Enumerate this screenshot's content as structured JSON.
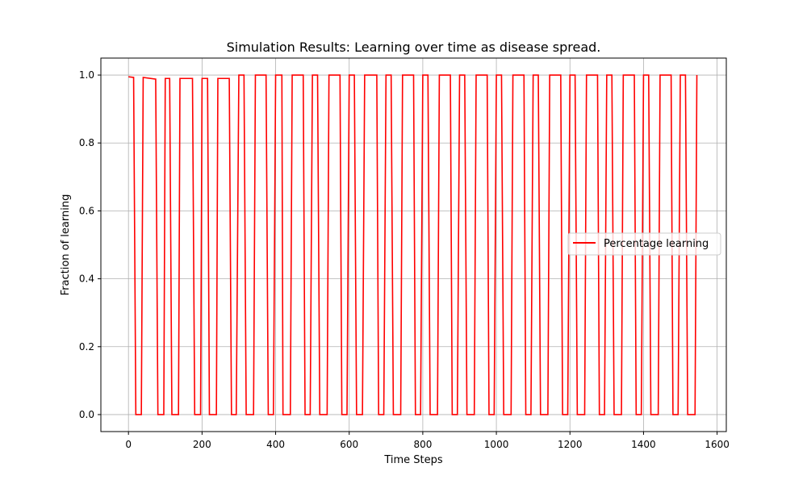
{
  "chart_data": {
    "type": "line",
    "title": "Simulation Results: Learning over time as disease spread.",
    "xlabel": "Time Steps",
    "ylabel": "Fraction of learning",
    "xlim": [
      -75,
      1625
    ],
    "ylim": [
      -0.05,
      1.05
    ],
    "xticks": [
      0,
      200,
      400,
      600,
      800,
      1000,
      1200,
      1400,
      1600
    ],
    "xtick_labels": [
      "0",
      "200",
      "400",
      "600",
      "800",
      "1000",
      "1200",
      "1400",
      "1600"
    ],
    "yticks": [
      0.0,
      0.2,
      0.4,
      0.6,
      0.8,
      1.0
    ],
    "ytick_labels": [
      "0.0",
      "0.2",
      "0.4",
      "0.6",
      "0.8",
      "1.0"
    ],
    "grid": true,
    "legend_position": "center-right",
    "series": [
      {
        "name": "Percentage learning",
        "color": "#ff0000",
        "x": [
          0,
          14,
          20,
          35,
          40,
          74,
          80,
          96,
          100,
          112,
          118,
          136,
          140,
          174,
          180,
          196,
          200,
          215,
          220,
          239,
          243,
          274,
          280,
          293,
          300,
          314,
          320,
          340,
          345,
          374,
          380,
          394,
          400,
          417,
          420,
          440,
          445,
          475,
          480,
          494,
          500,
          514,
          520,
          540,
          545,
          575,
          580,
          594,
          600,
          614,
          620,
          636,
          642,
          675,
          680,
          694,
          700,
          714,
          720,
          740,
          745,
          775,
          780,
          794,
          800,
          814,
          820,
          840,
          845,
          875,
          880,
          894,
          900,
          914,
          920,
          940,
          945,
          975,
          980,
          994,
          1000,
          1014,
          1020,
          1040,
          1045,
          1075,
          1080,
          1094,
          1100,
          1114,
          1120,
          1140,
          1145,
          1175,
          1180,
          1194,
          1200,
          1214,
          1220,
          1240,
          1245,
          1275,
          1280,
          1294,
          1300,
          1314,
          1320,
          1340,
          1345,
          1375,
          1380,
          1394,
          1400,
          1414,
          1420,
          1440,
          1445,
          1475,
          1480,
          1494,
          1500,
          1514,
          1520,
          1540,
          1545
        ],
        "y": [
          0.995,
          0.993,
          0,
          0,
          0.993,
          0.988,
          0,
          0,
          0.99,
          0.99,
          0,
          0,
          0.99,
          0.99,
          0,
          0,
          0.99,
          0.99,
          0,
          0,
          0.99,
          0.99,
          0,
          0,
          1,
          1,
          0,
          0,
          1,
          1,
          0,
          0,
          1,
          1,
          0,
          0,
          1,
          1,
          0,
          0,
          1,
          1,
          0,
          0,
          1,
          1,
          0,
          0,
          1,
          1,
          0,
          0,
          1,
          1,
          0,
          0,
          1,
          1,
          0,
          0,
          1,
          1,
          0,
          0,
          1,
          1,
          0,
          0,
          1,
          1,
          0,
          0,
          1,
          1,
          0,
          0,
          1,
          1,
          0,
          0,
          1,
          1,
          0,
          0,
          1,
          1,
          0,
          0,
          1,
          1,
          0,
          0,
          1,
          1,
          0,
          0,
          1,
          1,
          0,
          0,
          1,
          1,
          0,
          0,
          1,
          1,
          0,
          0,
          1,
          1,
          0,
          0,
          1,
          1,
          0,
          0,
          1,
          1,
          0,
          0,
          1,
          1,
          0,
          0,
          1
        ]
      }
    ]
  }
}
